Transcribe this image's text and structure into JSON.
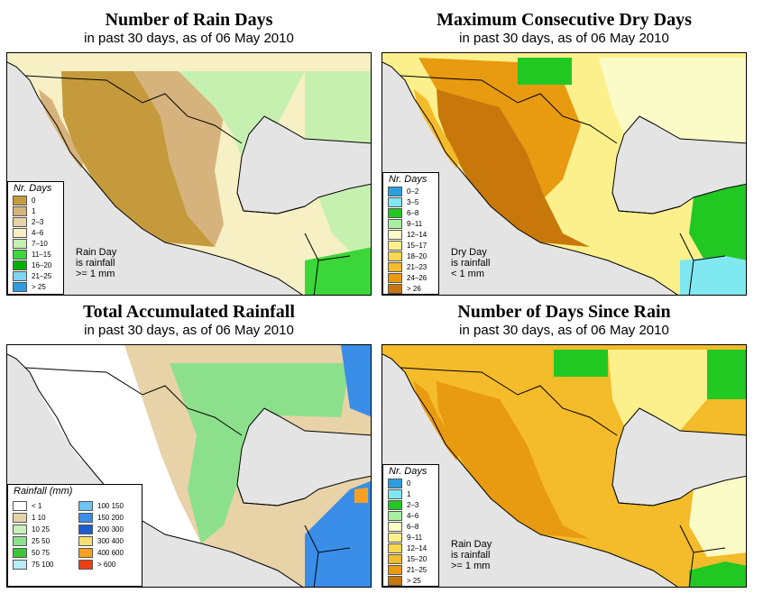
{
  "subtitle": "in past 30 days, as of  06 May 2010",
  "panels": [
    {
      "title": "Number of Rain Days",
      "legend_title": "Nr. Days",
      "legend": [
        {
          "label": "0",
          "color": "#c49a3c"
        },
        {
          "label": "1",
          "color": "#d6b37d"
        },
        {
          "label": "2–3",
          "color": "#e8d3a8"
        },
        {
          "label": "4–6",
          "color": "#f7f0c4"
        },
        {
          "label": "7–10",
          "color": "#c6f0b0"
        },
        {
          "label": "11–15",
          "color": "#3ad63a"
        },
        {
          "label": "16–20",
          "color": "#00b000"
        },
        {
          "label": "21–25",
          "color": "#7fd6f4"
        },
        {
          "label": "> 25",
          "color": "#2a9ee0"
        }
      ],
      "note": [
        "Rain Day",
        "is rainfall",
        ">= 1 mm"
      ]
    },
    {
      "title": "Maximum Consecutive Dry Days",
      "legend_title": "Nr. Days",
      "legend": [
        {
          "label": "0–2",
          "color": "#2a9ee0"
        },
        {
          "label": "3–5",
          "color": "#7fe8f0"
        },
        {
          "label": "6–8",
          "color": "#22c822"
        },
        {
          "label": "9–11",
          "color": "#a8f0a0"
        },
        {
          "label": "12–14",
          "color": "#fbfbc8"
        },
        {
          "label": "15–17",
          "color": "#fbf08c"
        },
        {
          "label": "18–20",
          "color": "#f8d850"
        },
        {
          "label": "21–23",
          "color": "#f4bb2a"
        },
        {
          "label": "24–26",
          "color": "#e89a10"
        },
        {
          "label": "> 26",
          "color": "#c8780a"
        }
      ],
      "note": [
        "Dry Day",
        "is rainfall",
        "< 1 mm"
      ]
    },
    {
      "title": "Total Accumulated Rainfall",
      "legend_title": "Rainfall (mm)",
      "legend_left": [
        {
          "label": "< 1",
          "color": "#ffffff"
        },
        {
          "label": "1    10",
          "color": "#e8d3a8"
        },
        {
          "label": "10    25",
          "color": "#c8f0b8"
        },
        {
          "label": "25    50",
          "color": "#8ce08c"
        },
        {
          "label": "50    75",
          "color": "#3ac83a"
        },
        {
          "label": "75   100",
          "color": "#b8ecf8"
        }
      ],
      "legend_right": [
        {
          "label": "100   150",
          "color": "#6cc4f4"
        },
        {
          "label": "150   200",
          "color": "#3a8ee8"
        },
        {
          "label": "200   300",
          "color": "#1a5ed0"
        },
        {
          "label": "300   400",
          "color": "#f8e070"
        },
        {
          "label": "400   600",
          "color": "#f8a020"
        },
        {
          "label": "> 600",
          "color": "#f04010"
        }
      ]
    },
    {
      "title": "Number of Days Since Rain",
      "legend_title": "Nr. Days",
      "legend": [
        {
          "label": "0",
          "color": "#2a9ee0"
        },
        {
          "label": "1",
          "color": "#7fe8f0"
        },
        {
          "label": "2–3",
          "color": "#22c822"
        },
        {
          "label": "4–6",
          "color": "#a8f0a0"
        },
        {
          "label": "6–8",
          "color": "#fbfbc8"
        },
        {
          "label": "9–11",
          "color": "#fbf08c"
        },
        {
          "label": "12–14",
          "color": "#f8d850"
        },
        {
          "label": "15–20",
          "color": "#f4bb2a"
        },
        {
          "label": "21–25",
          "color": "#e89a10"
        },
        {
          "label": "> 25",
          "color": "#c8780a"
        }
      ],
      "note": [
        "Rain Day",
        "is rainfall",
        ">= 1 mm"
      ]
    }
  ],
  "colors": {
    "ocean": "#e4e4e4",
    "border": "#000000"
  }
}
